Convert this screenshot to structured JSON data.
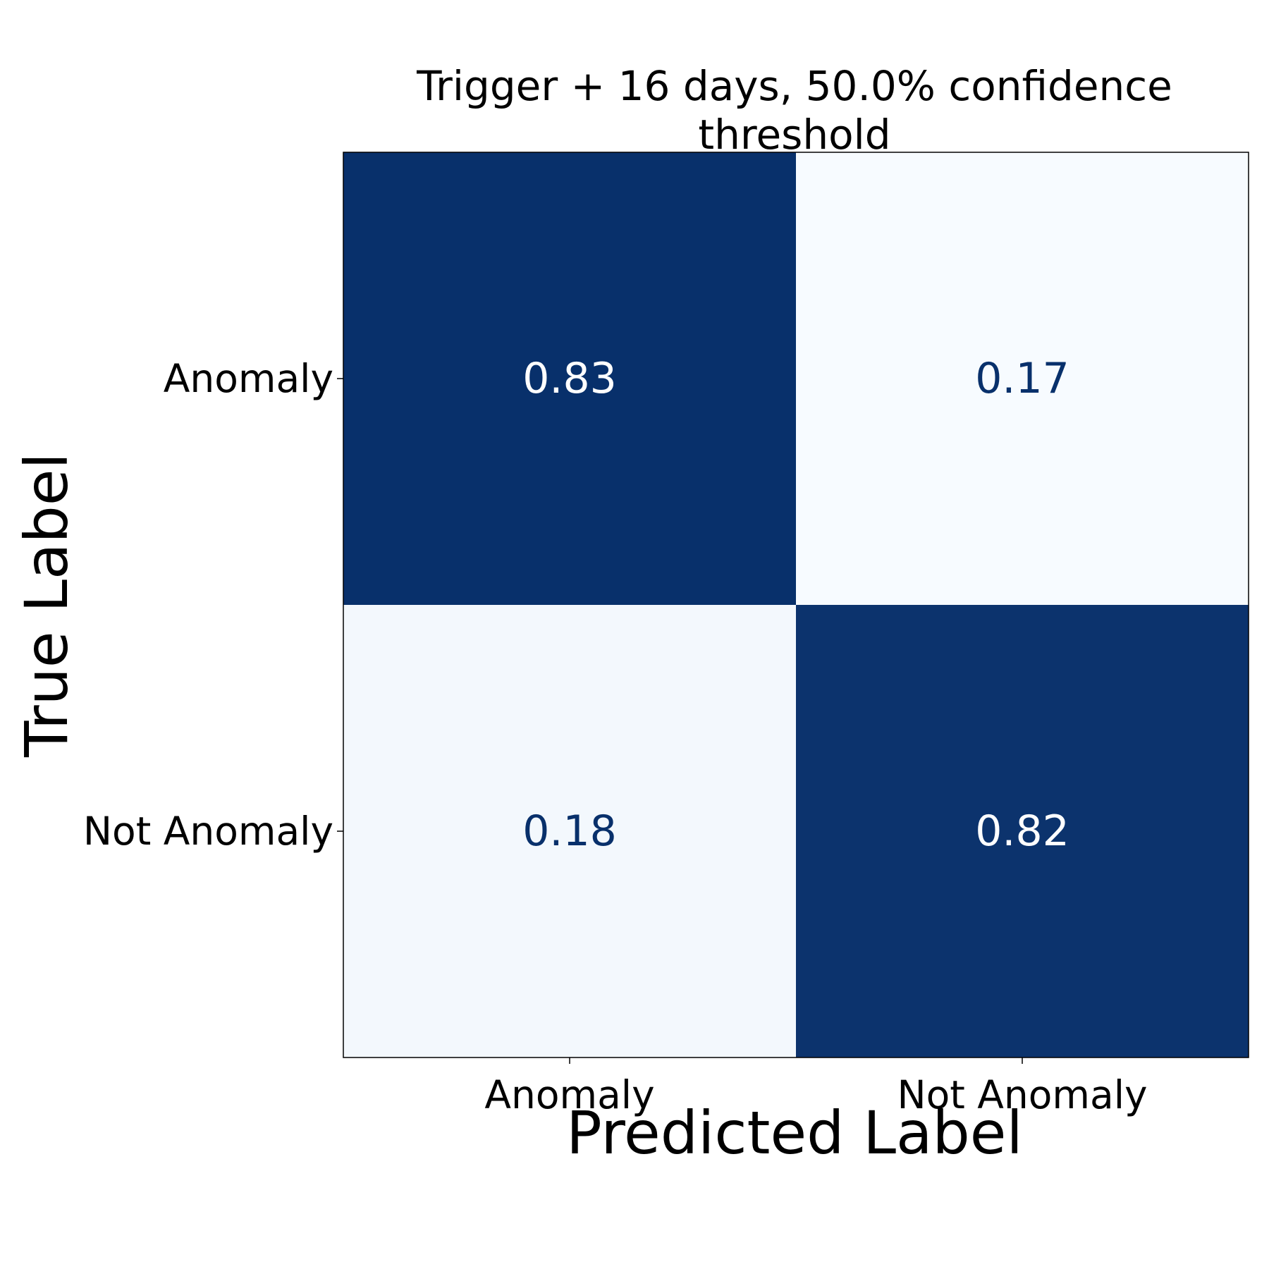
{
  "chart_data": {
    "type": "heatmap",
    "title_lines": [
      "Trigger + 16 days, 50.0% confidence",
      "threshold"
    ],
    "xlabel": "Predicted Label",
    "ylabel": "True Label",
    "x_categories": [
      "Anomaly",
      "Not Anomaly"
    ],
    "y_categories": [
      "Anomaly",
      "Not Anomaly"
    ],
    "values": [
      [
        0.83,
        0.17
      ],
      [
        0.18,
        0.82
      ]
    ],
    "value_labels": [
      [
        "0.83",
        "0.17"
      ],
      [
        "0.18",
        "0.82"
      ]
    ],
    "colormap": {
      "name": "Blues",
      "low_color": "#f7fbff",
      "high_color": "#08306b",
      "vmin": 0.17,
      "vmax": 0.83
    },
    "text_colors": {
      "on_dark": "#ffffff",
      "on_light": "#08306b"
    },
    "colorbar": false,
    "grid": false
  }
}
